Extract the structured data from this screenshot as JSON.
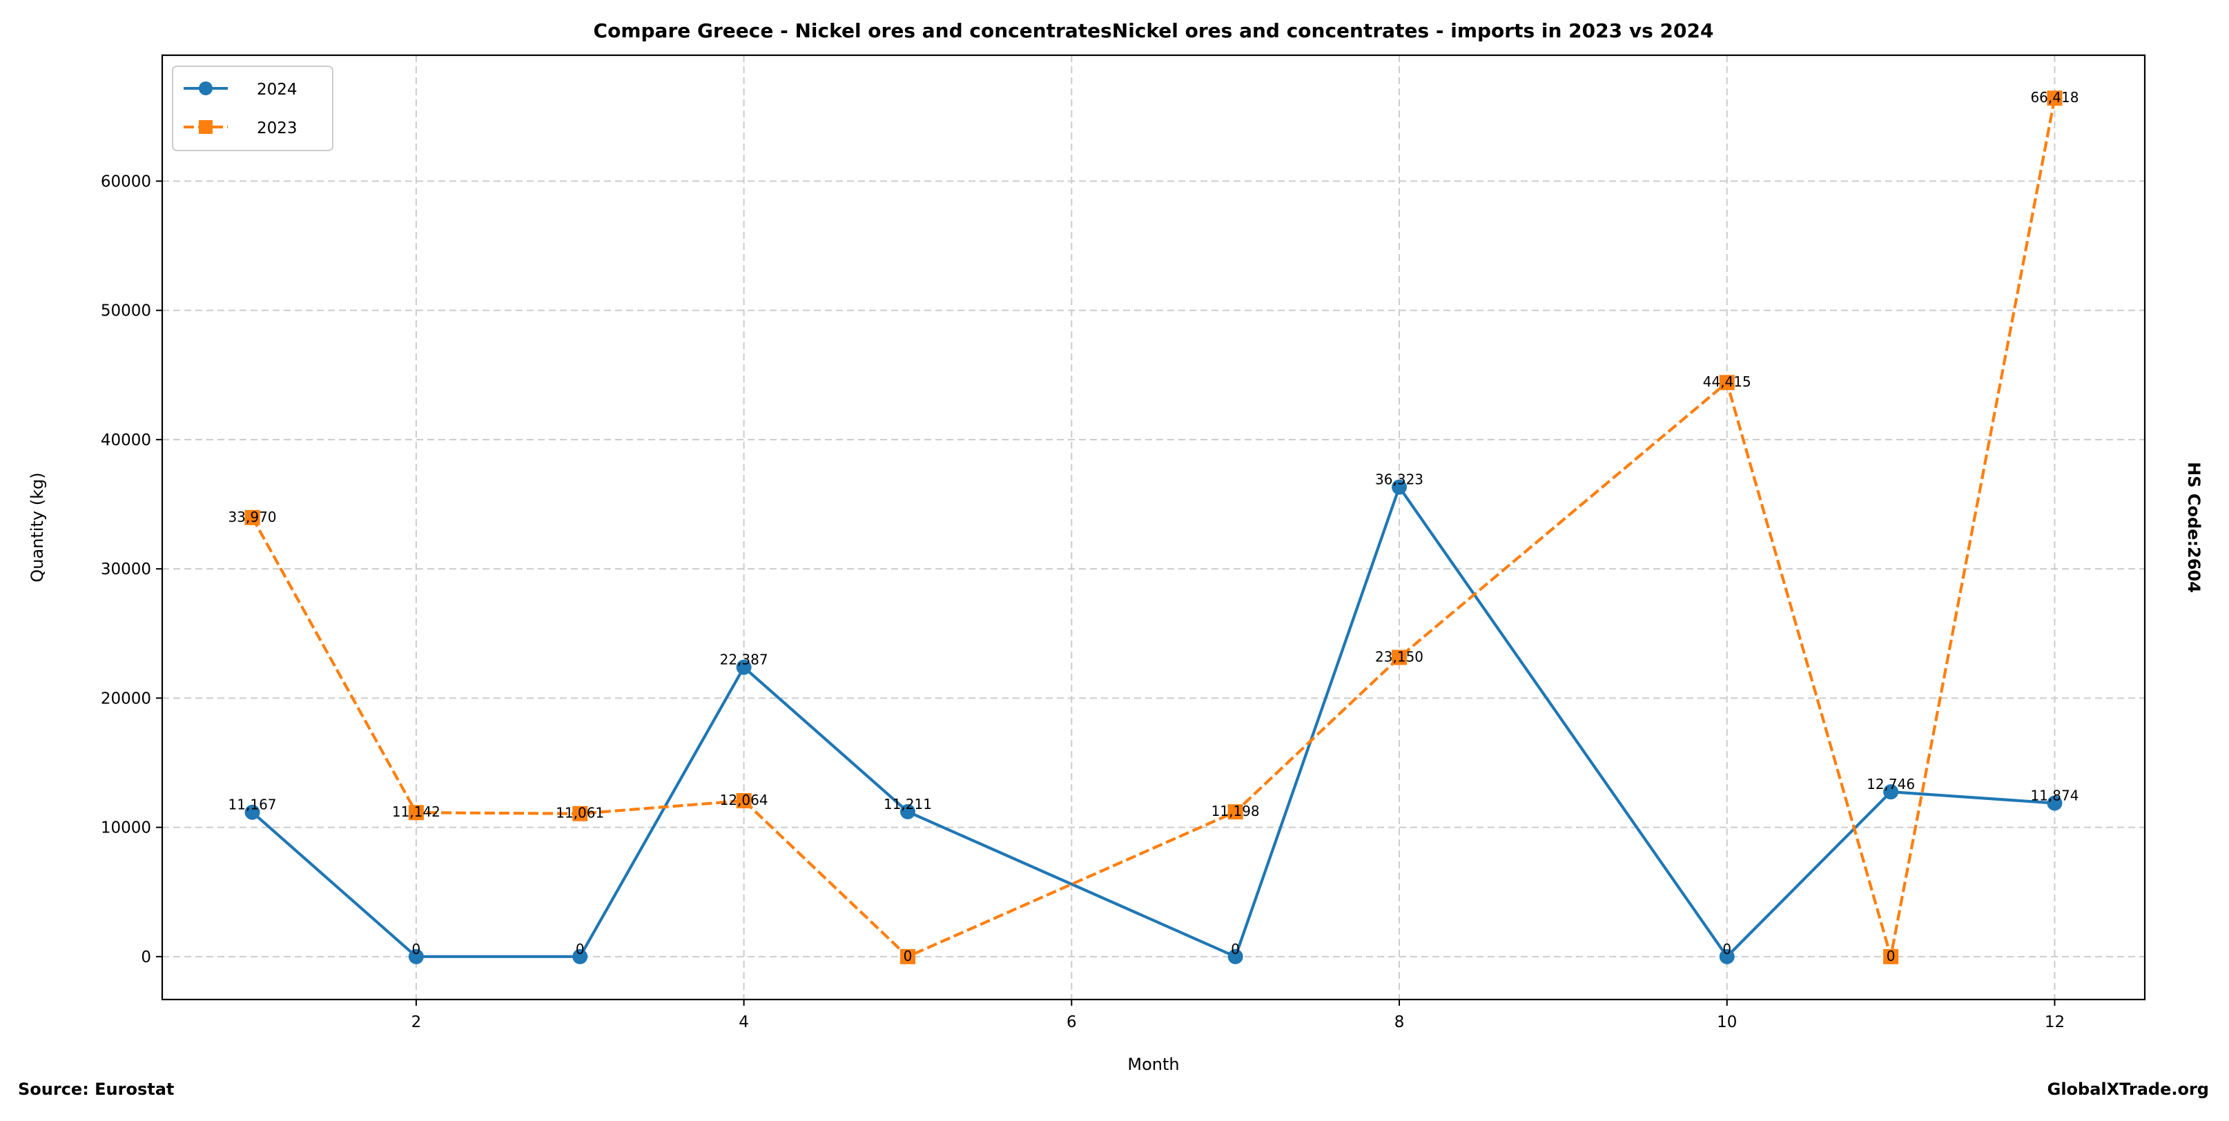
{
  "chart_data": {
    "type": "line",
    "title": "Compare Greece - Nickel ores and concentratesNickel ores and concentrates - imports in 2023 vs 2024",
    "xlabel": "Month",
    "ylabel": "Quantity (kg)",
    "xlim": [
      0.45,
      12.55
    ],
    "ylim": [
      -3320,
      69740
    ],
    "xticks": [
      2,
      4,
      6,
      8,
      10,
      12
    ],
    "yticks": [
      0,
      10000,
      20000,
      30000,
      40000,
      50000,
      60000
    ],
    "grid": true,
    "legend_position": "top-left",
    "series": [
      {
        "name": "2024",
        "color": "#1f77b4",
        "marker": "circle",
        "linestyle": "solid",
        "x": [
          1,
          2,
          3,
          4,
          5,
          7,
          8,
          10,
          11,
          12
        ],
        "y": [
          11167,
          0,
          0,
          22387,
          11211,
          0,
          36323,
          0,
          12746,
          11874
        ],
        "labels": [
          "11,167",
          "0",
          "0",
          "22,387",
          "11,211",
          "0",
          "36,323",
          "0",
          "12,746",
          "11,874"
        ]
      },
      {
        "name": "2023",
        "color": "#ff7f0e",
        "marker": "square",
        "linestyle": "dashed",
        "x": [
          1,
          2,
          3,
          4,
          5,
          7,
          8,
          10,
          11,
          12
        ],
        "y": [
          33970,
          11142,
          11061,
          12064,
          0,
          11198,
          23150,
          44415,
          0,
          66418
        ],
        "labels": [
          "33,970",
          "11,142",
          "11,061",
          "12,064",
          "0",
          "11,198",
          "23,150",
          "44,415",
          "0",
          "66,418"
        ]
      }
    ],
    "side_label": "HS Code:2604",
    "source": "Source: Eurostat",
    "brand": "GlobalXTrade.org"
  }
}
